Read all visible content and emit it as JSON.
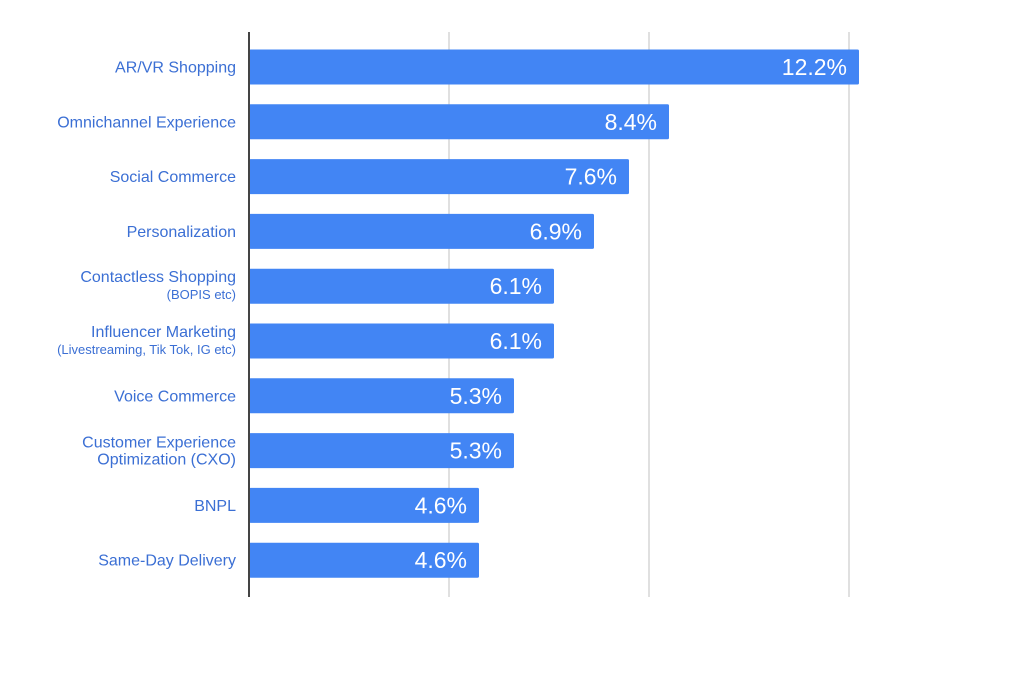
{
  "chart_data": {
    "type": "bar",
    "orientation": "horizontal",
    "categories": [
      "AR/VR Shopping",
      "Omnichannel Experience",
      "Social Commerce",
      "Personalization",
      "Contactless Shopping",
      "Influencer Marketing",
      "Voice Commerce",
      "Customer Experience Optimization (CXO)",
      "BNPL",
      "Same-Day Delivery"
    ],
    "category_labels": [
      {
        "main": [
          "AR/VR Shopping"
        ],
        "sub": ""
      },
      {
        "main": [
          "Omnichannel Experience"
        ],
        "sub": ""
      },
      {
        "main": [
          "Social Commerce"
        ],
        "sub": ""
      },
      {
        "main": [
          "Personalization"
        ],
        "sub": ""
      },
      {
        "main": [
          "Contactless Shopping"
        ],
        "sub": "(BOPIS etc)"
      },
      {
        "main": [
          "Influencer Marketing"
        ],
        "sub": "(Livestreaming, Tik Tok,  IG etc)"
      },
      {
        "main": [
          "Voice Commerce"
        ],
        "sub": ""
      },
      {
        "main": [
          "Customer Experience",
          "Optimization (CXO)"
        ],
        "sub": ""
      },
      {
        "main": [
          "BNPL"
        ],
        "sub": ""
      },
      {
        "main": [
          "Same-Day Delivery"
        ],
        "sub": ""
      }
    ],
    "values": [
      12.2,
      8.4,
      7.6,
      6.9,
      6.1,
      6.1,
      5.3,
      5.3,
      4.6,
      4.6
    ],
    "value_labels": [
      "12.2%",
      "8.4%",
      "7.6%",
      "6.9%",
      "6.1%",
      "6.1%",
      "5.3%",
      "5.3%",
      "4.6%",
      "4.6%"
    ],
    "xlim": [
      0,
      16
    ],
    "gridlines_at": [
      0,
      4,
      8,
      12
    ],
    "grid": true,
    "title": "",
    "xlabel": "",
    "ylabel": "",
    "bar_color": "#4285f4",
    "label_color": "#3b6fd4",
    "value_label_color": "#ffffff"
  }
}
